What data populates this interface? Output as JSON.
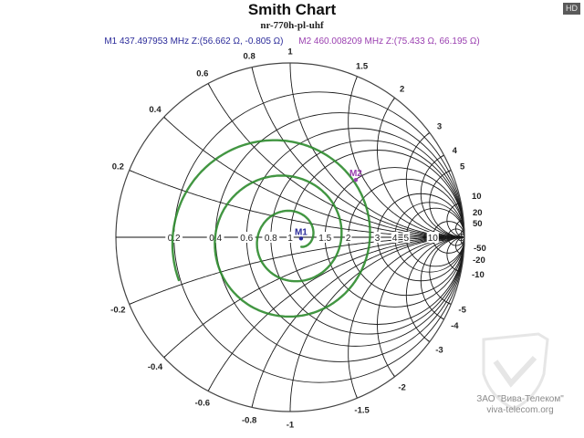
{
  "header": {
    "title": "Smith Chart",
    "subtitle": "nr-770h-pl-uhf",
    "hd_badge": "HD"
  },
  "markers": [
    {
      "id": "M1",
      "label": "M1",
      "freq": "437.497953 MHz",
      "impedance": "Z:(56.662 Ω, -0.805 Ω)",
      "text": "M1   437.497953 MHz  Z:(56.662 Ω, -0.805 Ω)",
      "color": "#2b2b9a",
      "r": 1.133,
      "x": -0.016
    },
    {
      "id": "M2",
      "label": "M2",
      "freq": "460.008209 MHz",
      "impedance": "Z:(75.433 Ω, 66.195 Ω)",
      "text": "M2   460.008209 MHz  Z:(75.433 Ω, 66.195 Ω)",
      "color": "#9a3fb0",
      "r": 1.509,
      "x": 1.324
    }
  ],
  "watermark": {
    "company": "ЗАО \"Вива-Телеком\"",
    "url": "viva-telecom.org"
  },
  "chart_data": {
    "type": "smith",
    "title": "Smith Chart",
    "subtitle": "nr-770h-pl-uhf",
    "z0_ohm": 50,
    "resistance_circles": [
      0.2,
      0.4,
      0.6,
      0.8,
      1,
      1.5,
      2,
      3,
      4,
      5,
      10,
      20,
      50
    ],
    "reactance_arcs": [
      0.2,
      0.4,
      0.6,
      0.8,
      1,
      1.5,
      2,
      3,
      4,
      5,
      10,
      20,
      50,
      -0.2,
      -0.4,
      -0.6,
      -0.8,
      -1,
      -1.5,
      -2,
      -3,
      -4,
      -5,
      -10,
      -20,
      -50
    ],
    "axis_labels_real": [
      "0.2",
      "0.4",
      "0.6",
      "0.8",
      "1",
      "1.5",
      "2",
      "3",
      "4",
      "5",
      "10",
      "20",
      "50"
    ],
    "rim_labels_positive": [
      "0.2",
      "0.4",
      "0.6",
      "0.8",
      "1",
      "1.5",
      "2",
      "3",
      "4",
      "5",
      "10",
      "20",
      "50"
    ],
    "rim_labels_negative": [
      "-0.2",
      "-0.4",
      "-0.6",
      "-0.8",
      "-1",
      "-1.5",
      "-2",
      "-3",
      "-4",
      "-5",
      "-10",
      "-20",
      "-50"
    ],
    "series": [
      {
        "name": "nr-770h-pl-uhf",
        "color": "#2e8b2e",
        "description": "spiral impedance trace, winding clockwise from outer region inward to near center (z≈1.13)"
      }
    ],
    "markers": [
      {
        "name": "M1",
        "freq_mhz": 437.497953,
        "z_real_ohm": 56.662,
        "z_imag_ohm": -0.805
      },
      {
        "name": "M2",
        "freq_mhz": 460.008209,
        "z_real_ohm": 75.433,
        "z_imag_ohm": 66.195
      }
    ]
  }
}
